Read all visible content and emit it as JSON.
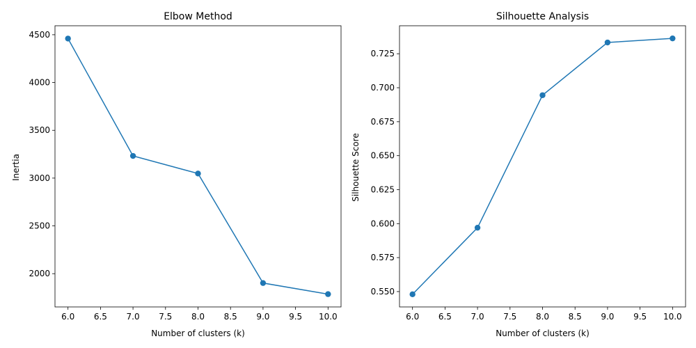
{
  "chart_data": [
    {
      "type": "line",
      "title": "Elbow Method",
      "xlabel": "Number of clusters (k)",
      "ylabel": "Inertia",
      "x": [
        6,
        7,
        8,
        9,
        10
      ],
      "series": [
        {
          "values": [
            4460,
            3232,
            3048,
            1902,
            1786
          ],
          "color": "#1f77b4",
          "marker": "circle"
        }
      ],
      "xlim": [
        5.8,
        10.2
      ],
      "ylim": [
        1652,
        4594
      ],
      "xticks": [
        6.0,
        6.5,
        7.0,
        7.5,
        8.0,
        8.5,
        9.0,
        9.5,
        10.0
      ],
      "xtick_labels": [
        "6.0",
        "6.5",
        "7.0",
        "7.5",
        "8.0",
        "8.5",
        "9.0",
        "9.5",
        "10.0"
      ],
      "yticks": [
        2000,
        2500,
        3000,
        3500,
        4000,
        4500
      ],
      "ytick_labels": [
        "2000",
        "2500",
        "3000",
        "3500",
        "4000",
        "4500"
      ],
      "grid": false
    },
    {
      "type": "line",
      "title": "Silhouette Analysis",
      "xlabel": "Number of clusters (k)",
      "ylabel": "Silhouette Score",
      "x": [
        6,
        7,
        8,
        9,
        10
      ],
      "series": [
        {
          "values": [
            0.548,
            0.597,
            0.6945,
            0.7333,
            0.7363
          ],
          "color": "#1f77b4",
          "marker": "circle"
        }
      ],
      "xlim": [
        5.8,
        10.2
      ],
      "ylim": [
        0.5387,
        0.7456
      ],
      "xticks": [
        6.0,
        6.5,
        7.0,
        7.5,
        8.0,
        8.5,
        9.0,
        9.5,
        10.0
      ],
      "xtick_labels": [
        "6.0",
        "6.5",
        "7.0",
        "7.5",
        "8.0",
        "8.5",
        "9.0",
        "9.5",
        "10.0"
      ],
      "yticks": [
        0.55,
        0.575,
        0.6,
        0.625,
        0.65,
        0.675,
        0.7,
        0.725
      ],
      "ytick_labels": [
        "0.550",
        "0.575",
        "0.600",
        "0.625",
        "0.650",
        "0.675",
        "0.700",
        "0.725"
      ],
      "grid": false
    }
  ]
}
